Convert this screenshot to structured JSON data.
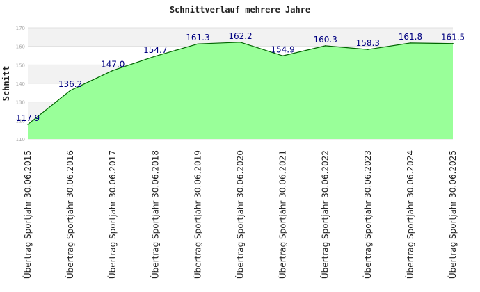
{
  "chart_data": {
    "type": "area",
    "title": "Schnittverlauf mehrere Jahre",
    "xlabel": "",
    "ylabel": "Schnitt",
    "categories": [
      "Übertrag Sportjahr 30.06.2015",
      "Übertrag Sportjahr 30.06.2016",
      "Übertrag Sportjahr 30.06.2017",
      "Übertrag Sportjahr 30.06.2018",
      "Übertrag Sportjahr 30.06.2019",
      "Übertrag Sportjahr 30.06.2020",
      "Übertrag Sportjahr 30.06.2021",
      "Übertrag Sportjahr 30.06.2022",
      "Übertrag Sportjahr 30.06.2023",
      "Übertrag Sportjahr 30.06.2024",
      "Übertrag Sportjahr 30.06.2025"
    ],
    "values": [
      117.9,
      136.2,
      147.0,
      154.7,
      161.3,
      162.2,
      154.9,
      160.3,
      158.3,
      161.8,
      161.5
    ],
    "data_labels": [
      "117.9",
      "136.2",
      "147.0",
      "154.7",
      "161.3",
      "162.2",
      "154.9",
      "160.3",
      "158.3",
      "161.8",
      "161.5"
    ],
    "ylim": [
      110,
      170
    ],
    "yticks": [
      110,
      120,
      130,
      140,
      150,
      160,
      170
    ],
    "ytick_labels": [
      "110",
      "120",
      "130",
      "140",
      "150",
      "160",
      "170"
    ],
    "grid": true,
    "legend": "none",
    "colors": {
      "fill": "#99ff99",
      "line": "#006400",
      "band_light": "#f2f2f2",
      "band_white": "#ffffff",
      "label": "#000080"
    }
  }
}
